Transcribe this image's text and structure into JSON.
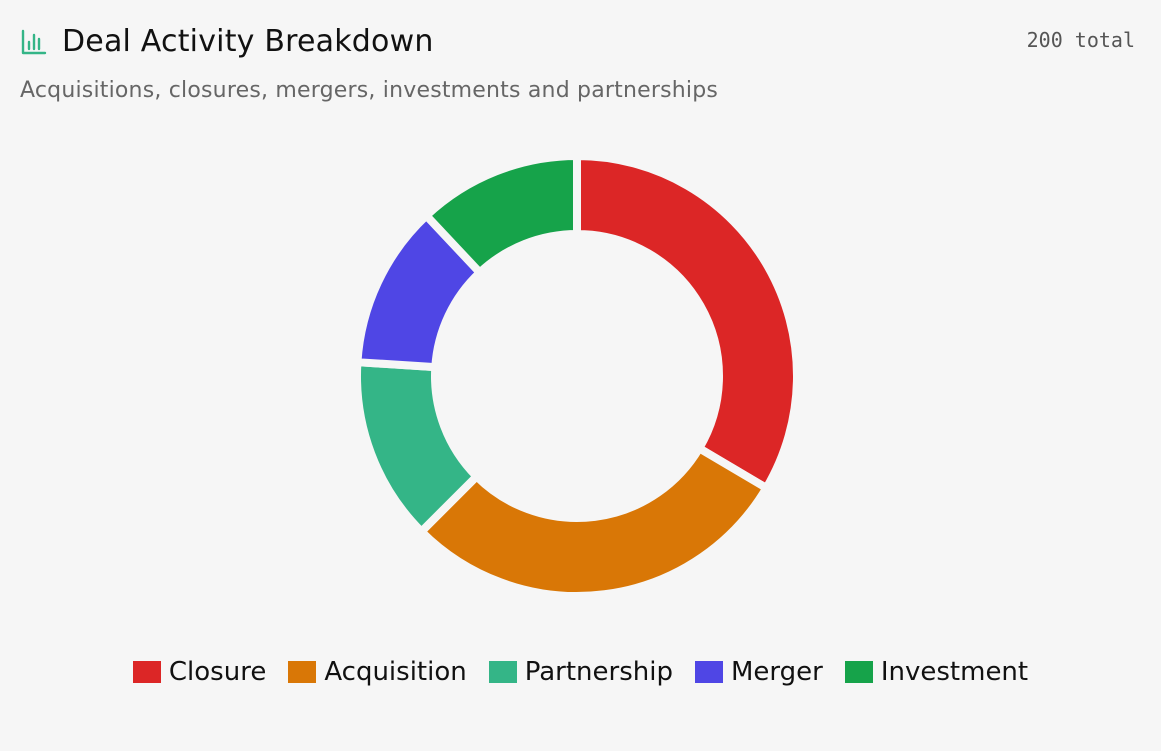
{
  "header": {
    "title": "Deal Activity Breakdown",
    "total_label": "200 total",
    "icon": "bar-chart-icon"
  },
  "subtitle": "Acquisitions, closures, mergers, investments and partnerships",
  "chart_data": {
    "type": "pie",
    "variant": "donut",
    "title": "Deal Activity Breakdown",
    "subtitle": "Acquisitions, closures, mergers, investments and partnerships",
    "total": 200,
    "categories": [
      "Closure",
      "Acquisition",
      "Partnership",
      "Merger",
      "Investment"
    ],
    "values": [
      67,
      58,
      27,
      24,
      24
    ],
    "colors": [
      "#dc2626",
      "#d97706",
      "#34b587",
      "#4f46e5",
      "#16a34a"
    ],
    "legend_position": "bottom"
  }
}
